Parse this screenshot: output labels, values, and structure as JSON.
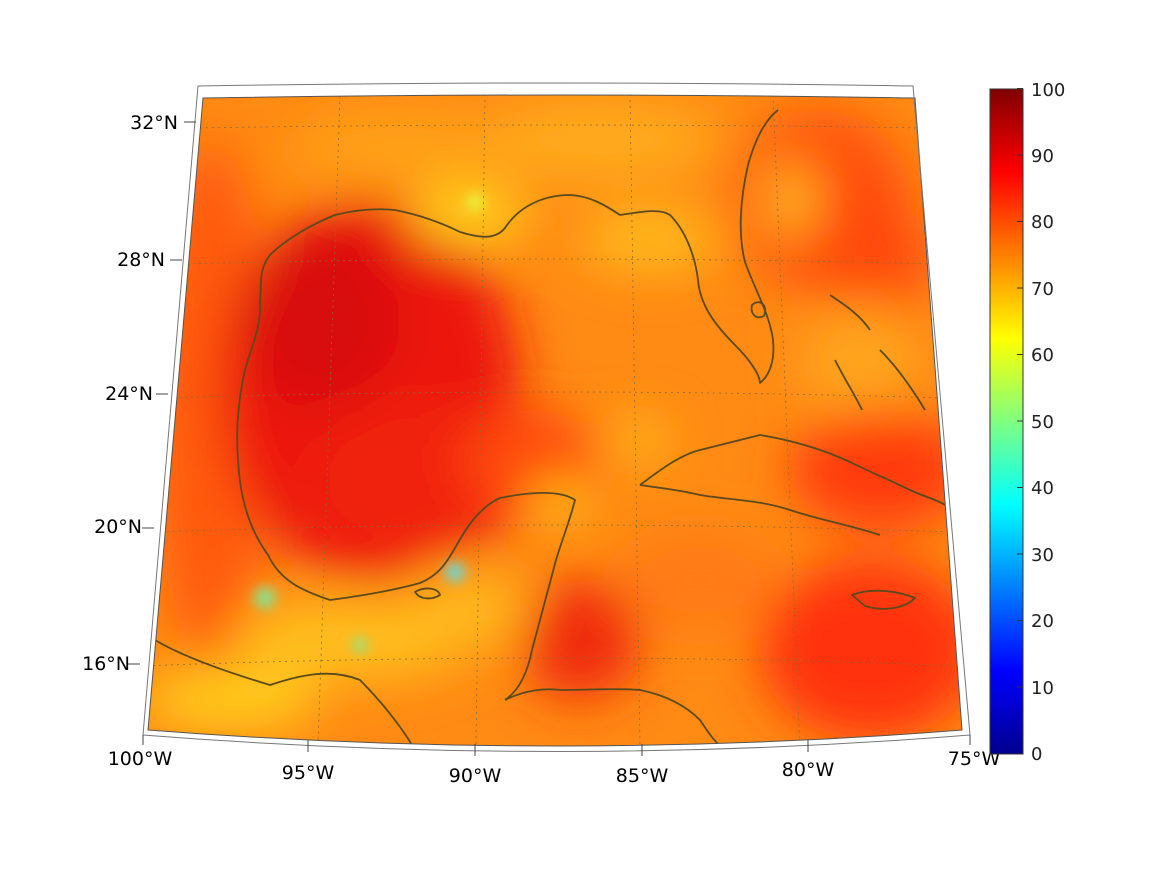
{
  "map": {
    "projection": "conic",
    "region": "Gulf of Mexico and Caribbean",
    "lon_range": [
      -100,
      -75
    ],
    "lat_range": [
      14,
      33
    ],
    "coastline_color": "#5a4a1e",
    "gridline_style": "dotted"
  },
  "axes": {
    "lon_ticks": [
      {
        "value": -100,
        "label": "100°W"
      },
      {
        "value": -95,
        "label": "95°W"
      },
      {
        "value": -90,
        "label": "90°W"
      },
      {
        "value": -85,
        "label": "85°W"
      },
      {
        "value": -80,
        "label": "80°W"
      },
      {
        "value": -75,
        "label": "75°W"
      }
    ],
    "lat_ticks": [
      {
        "value": 32,
        "label": "32°N"
      },
      {
        "value": 28,
        "label": "28°N"
      },
      {
        "value": 24,
        "label": "24°N"
      },
      {
        "value": 20,
        "label": "20°N"
      },
      {
        "value": 16,
        "label": "16°N"
      }
    ]
  },
  "colorbar": {
    "colormap": "jet",
    "min": 0,
    "max": 100,
    "tick_labels": [
      "0",
      "10",
      "20",
      "30",
      "40",
      "50",
      "60",
      "70",
      "80",
      "90",
      "100"
    ],
    "colors": [
      "#00008f",
      "#0000ff",
      "#0080ff",
      "#00ffff",
      "#80ff80",
      "#ffff00",
      "#ff8000",
      "#ff0000",
      "#800000"
    ]
  }
}
